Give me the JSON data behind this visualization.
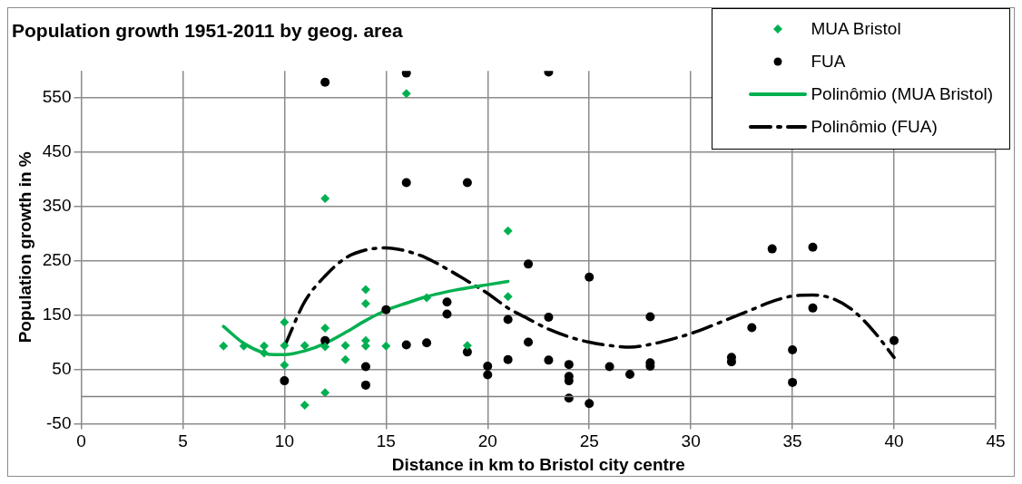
{
  "chart_data": {
    "type": "scatter",
    "title": "Population growth 1951-2011 by geog. area",
    "xlabel": "Distance in km to Bristol city centre",
    "ylabel": "Population growth in %",
    "xlim": [
      0,
      45
    ],
    "xticks": [
      0,
      5,
      10,
      15,
      20,
      25,
      30,
      35,
      40,
      45
    ],
    "ylim": [
      -50,
      600
    ],
    "yticks": [
      -50,
      50,
      150,
      250,
      350,
      450,
      550
    ],
    "grid": true,
    "legend": "top right",
    "ref_lines": [
      {
        "axis": "y",
        "value": 0,
        "color": "#808080"
      }
    ],
    "series": [
      {
        "name": "MUA Bristol",
        "type": "scatter",
        "marker": "diamond",
        "color": "#00b050",
        "x": [
          7,
          8,
          9,
          9,
          10,
          10,
          10,
          11,
          11,
          12,
          12,
          12,
          12,
          13,
          13,
          14,
          14,
          14,
          14,
          15,
          16,
          17,
          19,
          21,
          21
        ],
        "values": [
          93,
          93,
          93,
          80,
          137,
          94,
          58,
          94,
          -16,
          365,
          126,
          92,
          7,
          94,
          68,
          197,
          171,
          103,
          93,
          93,
          558,
          182,
          94,
          305,
          184
        ]
      },
      {
        "name": "FUA",
        "type": "scatter",
        "marker": "circle",
        "color": "#000000",
        "x": [
          10,
          12,
          12,
          14,
          14,
          15,
          16,
          16,
          16,
          17,
          18,
          18,
          19,
          19,
          20,
          20,
          21,
          21,
          22,
          22,
          23,
          23,
          23,
          24,
          24,
          24,
          24,
          25,
          25,
          26,
          27,
          28,
          28,
          28,
          32,
          32,
          33,
          34,
          35,
          35,
          36,
          36,
          40
        ],
        "values": [
          29,
          579,
          103,
          55,
          21,
          160,
          596,
          394,
          95,
          99,
          174,
          152,
          394,
          82,
          56,
          40,
          142,
          68,
          244,
          100,
          598,
          146,
          67,
          59,
          37,
          29,
          -3,
          220,
          -13,
          55,
          41,
          147,
          62,
          56,
          72,
          64,
          127,
          272,
          86,
          26,
          275,
          163,
          103
        ]
      },
      {
        "name": "Polinômio (MUA Bristol)",
        "type": "line",
        "marker": "none",
        "line_style": "solid",
        "color": "#00b050",
        "x": [
          7,
          8,
          9,
          9.5,
          10,
          11,
          12,
          13,
          14,
          15,
          16,
          17,
          18,
          19,
          20,
          21
        ],
        "values": [
          129,
          98,
          80,
          77,
          77,
          84,
          98,
          118,
          140,
          159,
          172,
          184,
          193,
          200,
          206,
          212
        ]
      },
      {
        "name": "Polinômio (FUA)",
        "type": "line",
        "marker": "none",
        "line_style": "dashed",
        "color": "#000000",
        "x": [
          10,
          11,
          12,
          13,
          14,
          15,
          16,
          17,
          18,
          19,
          20,
          21,
          22,
          23,
          24,
          25,
          26,
          27,
          28,
          29,
          30,
          31,
          32,
          33,
          34,
          35,
          36,
          37,
          38,
          39,
          40
        ],
        "values": [
          92,
          175,
          222,
          255,
          270,
          274,
          268,
          255,
          235,
          213,
          190,
          163,
          143,
          124,
          110,
          100,
          94,
          91,
          96,
          105,
          116,
          130,
          145,
          160,
          175,
          185,
          187,
          180,
          158,
          120,
          72
        ]
      }
    ]
  }
}
